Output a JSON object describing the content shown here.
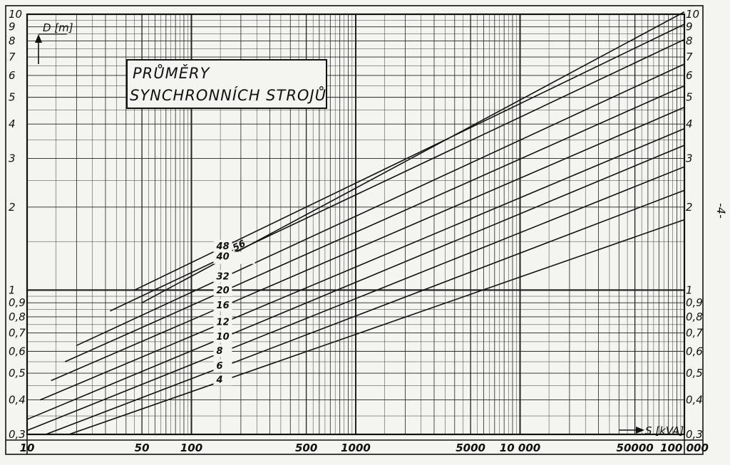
{
  "page_mark": "-4-",
  "chart_data": {
    "type": "line",
    "title": [
      "PRŮMĚRY",
      "SYNCHRONNÍCH STROJŮ"
    ],
    "x_scale": "log",
    "y_scale": "log",
    "xlabel": "S [kVA]",
    "ylabel": "D [m]",
    "xlim": [
      10,
      100000
    ],
    "ylim": [
      0.3,
      10
    ],
    "grid": true,
    "x_tick_labels": [
      {
        "value": 10,
        "label": "10"
      },
      {
        "value": 50,
        "label": "50"
      },
      {
        "value": 100,
        "label": "100"
      },
      {
        "value": 500,
        "label": "500"
      },
      {
        "value": 1000,
        "label": "1000"
      },
      {
        "value": 5000,
        "label": "5000"
      },
      {
        "value": 10000,
        "label": "10 000"
      },
      {
        "value": 50000,
        "label": "50000"
      },
      {
        "value": 100000,
        "label": "100 000"
      }
    ],
    "y_tick_labels": [
      {
        "value": 10,
        "label": "10"
      },
      {
        "value": 9,
        "label": "9"
      },
      {
        "value": 8,
        "label": "8"
      },
      {
        "value": 7,
        "label": "7"
      },
      {
        "value": 6,
        "label": "6"
      },
      {
        "value": 5,
        "label": "5"
      },
      {
        "value": 4,
        "label": "4"
      },
      {
        "value": 3,
        "label": "3"
      },
      {
        "value": 2,
        "label": "2"
      },
      {
        "value": 1,
        "label": "1"
      },
      {
        "value": 0.9,
        "label": "0,9"
      },
      {
        "value": 0.8,
        "label": "0,8"
      },
      {
        "value": 0.7,
        "label": "0,7"
      },
      {
        "value": 0.6,
        "label": "0,6"
      },
      {
        "value": 0.5,
        "label": "0,5"
      },
      {
        "value": 0.4,
        "label": "0,4"
      },
      {
        "value": 0.3,
        "label": "0,3"
      }
    ],
    "series": [
      {
        "name": "2p=56",
        "points": [
          [
            50,
            0.9
          ],
          [
            100000,
            10.2
          ]
        ]
      },
      {
        "name": "48",
        "points": [
          [
            45,
            1.0
          ],
          [
            100000,
            9.2
          ]
        ]
      },
      {
        "name": "40",
        "points": [
          [
            32,
            0.84
          ],
          [
            100000,
            8.1
          ]
        ]
      },
      {
        "name": "32",
        "points": [
          [
            20,
            0.63
          ],
          [
            100000,
            6.6
          ]
        ]
      },
      {
        "name": "20",
        "points": [
          [
            17,
            0.55
          ],
          [
            100000,
            5.5
          ]
        ]
      },
      {
        "name": "16",
        "points": [
          [
            14,
            0.47
          ],
          [
            100000,
            4.6
          ]
        ]
      },
      {
        "name": "12",
        "points": [
          [
            12,
            0.4
          ],
          [
            100000,
            3.85
          ]
        ]
      },
      {
        "name": "10",
        "points": [
          [
            10,
            0.34
          ],
          [
            100000,
            3.35
          ]
        ]
      },
      {
        "name": "8",
        "points": [
          [
            10,
            0.31
          ],
          [
            100000,
            2.8
          ]
        ]
      },
      {
        "name": "6",
        "points": [
          [
            13,
            0.3
          ],
          [
            100000,
            2.3
          ]
        ]
      },
      {
        "name": "4",
        "points": [
          [
            18,
            0.3
          ],
          [
            100000,
            1.8
          ]
        ]
      }
    ]
  }
}
